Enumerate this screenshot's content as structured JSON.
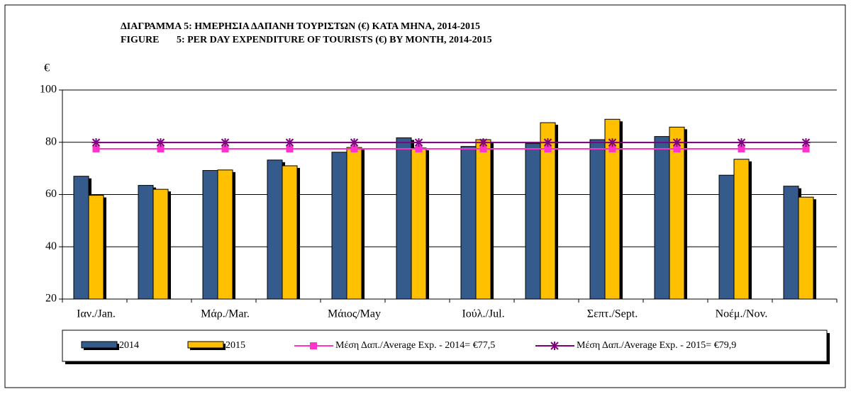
{
  "chart_data": {
    "type": "bar",
    "title": "ΔΙΑΓΡΑΜΜΑ 5: ΗΜΕΡΗΣΙΑ ΔΑΠΑΝΗ ΤΟΥΡΙΣΤΩΝ (€) ΚΑΤΑ ΜΗΝΑ, 2014-2015",
    "subtitle": "FIGURE       5: PER DAY EXPENDITURE OF TOURISTS (€) BY MONTH, 2014-2015",
    "y_label": "€",
    "categories": [
      "Ιαν./Jan.",
      null,
      "Μάρ./Mar.",
      null,
      "Μάιος/May",
      null,
      "Ιούλ./Jul.",
      null,
      "Σεπτ./Sept.",
      null,
      "Νοέμ./Nov.",
      null
    ],
    "series": [
      {
        "name": "2014",
        "type": "bar",
        "color": "#355b8c",
        "values": [
          67,
          63.5,
          69.2,
          73.2,
          76.2,
          81.7,
          78.4,
          79.5,
          81,
          82.2,
          67.4,
          63.2
        ]
      },
      {
        "name": "2015",
        "type": "bar",
        "color": "#ffc000",
        "values": [
          59.7,
          62,
          69.4,
          71,
          78,
          77.8,
          81,
          87.5,
          88.8,
          85.8,
          73.5,
          59
        ]
      },
      {
        "name": "Μέση Δαπ./Average Exp. - 2014= €77,5",
        "type": "line",
        "marker": "square",
        "color": "#ff33cc",
        "values": [
          77.5,
          77.5,
          77.5,
          77.5,
          77.5,
          77.5,
          77.5,
          77.5,
          77.5,
          77.5,
          77.5,
          77.5
        ]
      },
      {
        "name": "Μέση Δαπ./Average Exp. - 2015= €79,9",
        "type": "line",
        "marker": "star",
        "color": "#800080",
        "values": [
          79.9,
          79.9,
          79.9,
          79.9,
          79.9,
          79.9,
          79.9,
          79.9,
          79.9,
          79.9,
          79.9,
          79.9
        ]
      }
    ],
    "ylim": [
      20,
      100
    ],
    "yticks": [
      20,
      40,
      60,
      80,
      100
    ],
    "grid": true,
    "legend": "bottom"
  }
}
